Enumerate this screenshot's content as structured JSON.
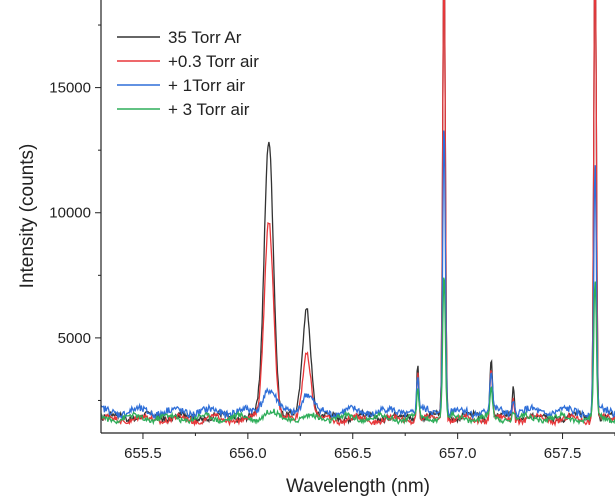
{
  "chart_data": {
    "type": "line",
    "title": "",
    "xlabel": "Wavelength (nm)",
    "ylabel": "Intensity (counts)",
    "xlim": [
      655.3,
      657.75
    ],
    "ylim": [
      1200,
      18500
    ],
    "x_ticks": [
      "655.5",
      "656.0",
      "656.5",
      "657.0",
      "657.5"
    ],
    "x_tick_values": [
      655.5,
      656.0,
      656.5,
      657.0,
      657.5
    ],
    "y_ticks": [
      "5000",
      "10000",
      "15000"
    ],
    "y_tick_values": [
      5000,
      10000,
      15000
    ],
    "grid": false,
    "legend_position": "top-left",
    "series": [
      {
        "name": "35 Torr Ar",
        "color": "#333333",
        "baseline": 1850,
        "noise": 260,
        "peaks": [
          [
            656.1,
            11100,
            0.022
          ],
          [
            656.28,
            4400,
            0.02
          ],
          [
            656.81,
            2300,
            0.005
          ],
          [
            656.935,
            19500,
            0.006
          ],
          [
            657.16,
            2400,
            0.006
          ],
          [
            657.265,
            1100,
            0.005
          ],
          [
            657.655,
            19500,
            0.006
          ]
        ]
      },
      {
        "name": "+0.3 Torr air",
        "color": "#e8373a",
        "baseline": 1750,
        "noise": 220,
        "peaks": [
          [
            656.1,
            8000,
            0.022
          ],
          [
            656.28,
            2700,
            0.02
          ],
          [
            656.81,
            1900,
            0.005
          ],
          [
            656.935,
            19500,
            0.006
          ],
          [
            657.16,
            2000,
            0.006
          ],
          [
            657.265,
            900,
            0.005
          ],
          [
            657.655,
            19500,
            0.006
          ]
        ]
      },
      {
        "name": "+ 1Torr air",
        "color": "#2f6fd8",
        "baseline": 2050,
        "noise": 300,
        "peaks": [
          [
            656.1,
            900,
            0.03
          ],
          [
            656.28,
            700,
            0.025
          ],
          [
            656.81,
            1400,
            0.005
          ],
          [
            656.935,
            11700,
            0.006
          ],
          [
            657.16,
            1600,
            0.006
          ],
          [
            657.265,
            500,
            0.005
          ],
          [
            657.655,
            9900,
            0.006
          ]
        ]
      },
      {
        "name": "+ 3 Torr air",
        "color": "#2fae5a",
        "baseline": 1800,
        "noise": 220,
        "peaks": [
          [
            656.1,
            200,
            0.03
          ],
          [
            656.81,
            1000,
            0.005
          ],
          [
            656.935,
            5900,
            0.006
          ],
          [
            657.16,
            1100,
            0.006
          ],
          [
            657.265,
            300,
            0.005
          ],
          [
            657.655,
            5500,
            0.006
          ]
        ]
      }
    ]
  }
}
